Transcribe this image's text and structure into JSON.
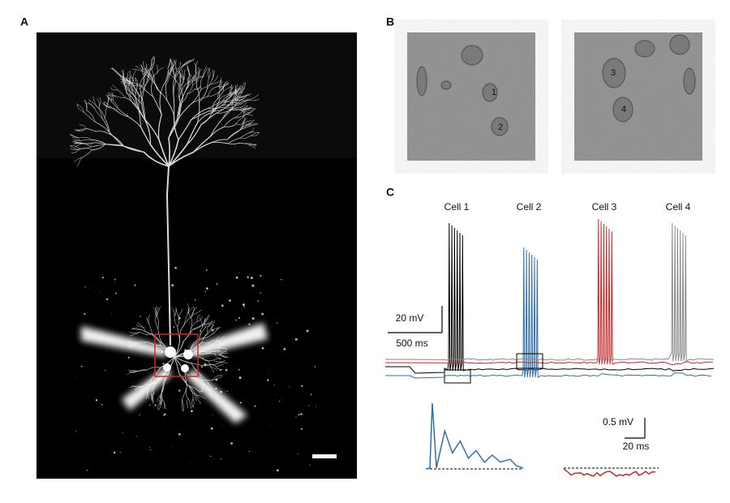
{
  "panel_labels": {
    "a": "A",
    "b": "B",
    "c": "C"
  },
  "image_b_labels": [
    "1",
    "2",
    "3",
    "4"
  ],
  "trace_titles": [
    "Cell 1",
    "Cell 2",
    "Cell 3",
    "Cell 4"
  ],
  "scale_bars": {
    "main_voltage": "20 mV",
    "main_time": "500 ms",
    "inset_voltage": "0.5 mV",
    "inset_time": "20 ms"
  }
}
